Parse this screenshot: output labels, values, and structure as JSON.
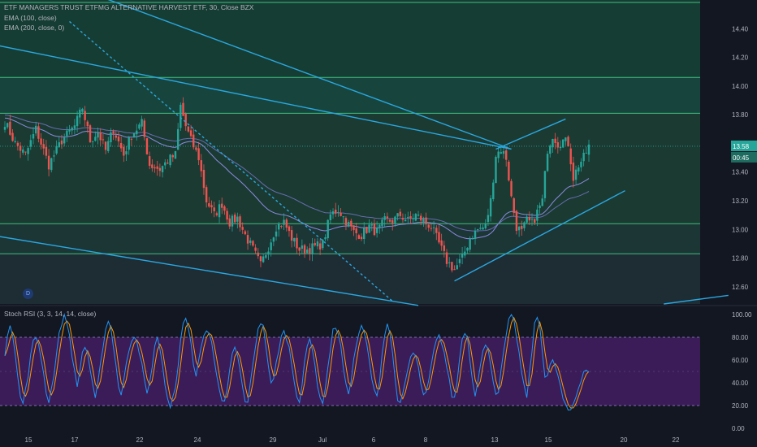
{
  "legend": {
    "title": "ETF MANAGERS TRUST ETFMG ALTERNATIVE HARVEST ETF, 30, Close BZX",
    "ema100": "EMA (100, close)",
    "ema200": "EMA (200, close, 0)",
    "stoch": "Stoch RSI (3, 3, 14, 14, close)"
  },
  "colors": {
    "background": "#131722",
    "up": "#26a69a",
    "down": "#ef5350",
    "trendline": "#2aa7e0",
    "level": "#3fbf7f",
    "ema": "#8c8ce0",
    "stoch_k": "#2196f3",
    "stoch_d": "#ff9800",
    "stoch_band": "#4a1f6b"
  },
  "price_tag": {
    "price": "13.58",
    "countdown": "00:45"
  },
  "d_marker": "D",
  "chart_data": [
    {
      "type": "candlestick",
      "title": "ETF MANAGERS TRUST ETFMG ALTERNATIVE HARVEST ETF, 30, Close BZX",
      "ylim": [
        12.48,
        14.6
      ],
      "y_ticks": [
        "14.40",
        "14.20",
        "14.00",
        "13.80",
        "13.60",
        "13.40",
        "13.20",
        "13.00",
        "12.80",
        "12.60"
      ],
      "x_ticks": [
        "15",
        "17",
        "22",
        "24",
        "29",
        "Jul",
        "6",
        "8",
        "13",
        "15",
        "20",
        "22"
      ],
      "horizontal_levels": [
        14.06,
        13.81,
        13.04,
        12.83
      ],
      "last_price": 13.58,
      "anchors": [
        [
          0,
          13.75
        ],
        [
          4,
          13.6
        ],
        [
          8,
          13.52
        ],
        [
          12,
          13.7
        ],
        [
          17,
          13.45
        ],
        [
          22,
          13.62
        ],
        [
          27,
          13.72
        ],
        [
          30,
          13.85
        ],
        [
          33,
          13.62
        ],
        [
          36,
          13.68
        ],
        [
          39,
          13.55
        ],
        [
          42,
          13.7
        ],
        [
          46,
          13.52
        ],
        [
          49,
          13.66
        ],
        [
          53,
          13.74
        ],
        [
          56,
          13.45
        ],
        [
          60,
          13.42
        ],
        [
          63,
          13.48
        ],
        [
          66,
          13.52
        ],
        [
          68,
          13.86
        ],
        [
          70,
          13.72
        ],
        [
          72,
          13.62
        ],
        [
          75,
          13.5
        ],
        [
          78,
          13.2
        ],
        [
          81,
          13.1
        ],
        [
          84,
          13.18
        ],
        [
          87,
          13.05
        ],
        [
          90,
          13.08
        ],
        [
          93,
          12.96
        ],
        [
          96,
          12.86
        ],
        [
          99,
          12.75
        ],
        [
          102,
          12.88
        ],
        [
          105,
          13.02
        ],
        [
          108,
          13.05
        ],
        [
          111,
          12.94
        ],
        [
          114,
          12.86
        ],
        [
          117,
          12.86
        ],
        [
          120,
          12.88
        ],
        [
          123,
          12.9
        ],
        [
          126,
          13.1
        ],
        [
          129,
          13.14
        ],
        [
          132,
          13.06
        ],
        [
          135,
          12.98
        ],
        [
          138,
          12.96
        ],
        [
          141,
          13.02
        ],
        [
          144,
          12.98
        ],
        [
          147,
          13.06
        ],
        [
          150,
          13.06
        ],
        [
          153,
          13.1
        ],
        [
          156,
          13.06
        ],
        [
          159,
          13.1
        ],
        [
          162,
          13.06
        ],
        [
          165,
          13.02
        ],
        [
          168,
          12.9
        ],
        [
          171,
          12.78
        ],
        [
          174,
          12.72
        ],
        [
          177,
          12.8
        ],
        [
          180,
          12.94
        ],
        [
          183,
          13.0
        ],
        [
          186,
          13.02
        ],
        [
          188,
          13.2
        ],
        [
          190,
          13.52
        ],
        [
          192,
          13.56
        ],
        [
          194,
          13.5
        ],
        [
          196,
          13.22
        ],
        [
          198,
          13.02
        ],
        [
          200,
          12.98
        ],
        [
          202,
          13.06
        ],
        [
          204,
          13.04
        ],
        [
          206,
          13.12
        ],
        [
          208,
          13.2
        ],
        [
          210,
          13.56
        ],
        [
          212,
          13.66
        ],
        [
          214,
          13.6
        ],
        [
          216,
          13.62
        ],
        [
          218,
          13.6
        ],
        [
          220,
          13.36
        ],
        [
          222,
          13.45
        ],
        [
          224,
          13.5
        ],
        [
          226,
          13.58
        ]
      ]
    },
    {
      "type": "line",
      "title": "Stoch RSI (3, 3, 14, 14, close)",
      "ylim": [
        -5,
        105
      ],
      "y_ticks": [
        "100.00",
        "80.00",
        "60.00",
        "40.00",
        "20.00",
        "0.00"
      ],
      "bands": [
        20,
        80
      ],
      "series": [
        {
          "key": "k",
          "cycle_centers": [
            2,
            12,
            23,
            31,
            40,
            50,
            59,
            70,
            78,
            89,
            99,
            108,
            118,
            128,
            138,
            148,
            158,
            168,
            178,
            186,
            196,
            206,
            212,
            225
          ],
          "cycle_highs": [
            92,
            80,
            98,
            72,
            94,
            82,
            78,
            96,
            88,
            70,
            94,
            84,
            78,
            90,
            88,
            92,
            66,
            80,
            86,
            72,
            98,
            98,
            58,
            52
          ]
        }
      ]
    }
  ]
}
